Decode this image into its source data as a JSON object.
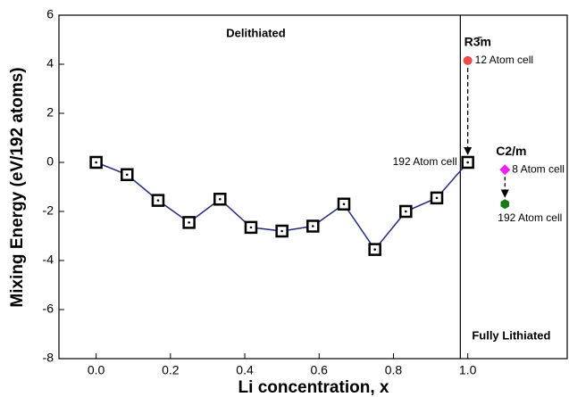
{
  "chart_data": {
    "type": "line",
    "xlabel": "Li concentration, x",
    "ylabel": "Mixing Energy (eV/192 atoms)",
    "xlim": [
      -0.1,
      1.27
    ],
    "ylim": [
      -8,
      6
    ],
    "xticks": [
      {
        "value": 0,
        "label": "0.0"
      },
      {
        "value": 0.2,
        "label": "0.2"
      },
      {
        "value": 0.4,
        "label": "0.4"
      },
      {
        "value": 0.6,
        "label": "0.6"
      },
      {
        "value": 0.8,
        "label": "0.8"
      },
      {
        "value": 1,
        "label": "1.0"
      }
    ],
    "yticks": [
      -8,
      -6,
      -4,
      -2,
      0,
      2,
      4,
      6
    ],
    "series": [
      {
        "color": "#1f2a80",
        "x": [
          0,
          0.0833,
          0.1667,
          0.25,
          0.3333,
          0.4167,
          0.5,
          0.5833,
          0.6667,
          0.75,
          0.8333,
          0.9167,
          1.0
        ],
        "values": [
          0,
          -0.5,
          -1.55,
          -2.45,
          -1.5,
          -2.65,
          -2.8,
          -2.6,
          -1.7,
          -3.55,
          -2.0,
          -1.45,
          0
        ],
        "end_label": "192 Atom cell"
      }
    ],
    "points": [
      {
        "x": 1.0,
        "y": 4.15,
        "label": "12 Atom cell",
        "color": "#ef4a4a",
        "marker": "circle"
      },
      {
        "x": 1.1,
        "y": -0.3,
        "label": "8 Atom cell",
        "color": "#ee22ee",
        "marker": "diamond"
      },
      {
        "x": 1.1,
        "y": -1.7,
        "label": "192 Atom cell",
        "color": "#1a7a1a",
        "marker": "hexagon"
      }
    ],
    "phases": [
      "R3̄m",
      "C2/m"
    ],
    "regions": [
      "Delithiated",
      "Fully Lithiated"
    ],
    "boundary_x": 0.98
  }
}
